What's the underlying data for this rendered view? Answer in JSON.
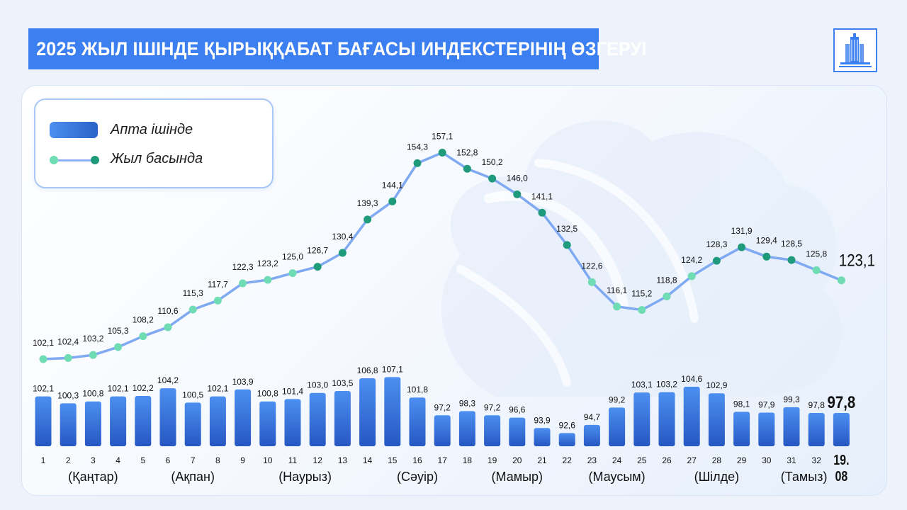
{
  "title": "2025 ЖЫЛ ІШІНДЕ ҚЫРЫҚҚАБАТ БАҒАСЫ ИНДЕКСТЕРІНІҢ ӨЗГЕРУІ",
  "logo_icon": "government-building-icon",
  "legend": {
    "weekly": "Апта ішінде",
    "ytd": "Жыл басында"
  },
  "colors": {
    "accent": "#3c7ff0",
    "bar_top": "#4c8ff0",
    "bar_bottom": "#2657c2",
    "line": "#7fa9f0",
    "dot_light": "#6fdcb4",
    "dot_dark": "#1f9a7a"
  },
  "chart_data": {
    "type": "bar+line",
    "categories": [
      "1",
      "2",
      "3",
      "4",
      "5",
      "6",
      "7",
      "8",
      "9",
      "10",
      "11",
      "12",
      "13",
      "14",
      "15",
      "16",
      "17",
      "18",
      "19",
      "20",
      "21",
      "22",
      "23",
      "24",
      "25",
      "26",
      "27",
      "28",
      "29",
      "30",
      "31",
      "32",
      "19.\n08"
    ],
    "last_category_lines": [
      "19.",
      "08"
    ],
    "months": [
      "(Қаңтар)",
      "(Ақпан)",
      "(Наурыз)",
      "(Сәуір)",
      "(Мамыр)",
      "(Маусым)",
      "(Шілде)",
      "(Тамыз)"
    ],
    "series": [
      {
        "name": "Апта ішінде",
        "type": "bar",
        "values": [
          102.1,
          100.3,
          100.8,
          102.1,
          102.2,
          104.2,
          100.5,
          102.1,
          103.9,
          100.8,
          101.4,
          103.0,
          103.5,
          106.8,
          107.1,
          101.8,
          97.2,
          98.3,
          97.2,
          96.6,
          93.9,
          92.6,
          94.7,
          99.2,
          103.1,
          103.2,
          104.6,
          102.9,
          98.1,
          97.9,
          99.3,
          97.8,
          97.8
        ],
        "labels": [
          "102,1",
          "100,3",
          "100,8",
          "102,1",
          "102,2",
          "104,2",
          "100,5",
          "102,1",
          "103,9",
          "100,8",
          "101,4",
          "103,0",
          "103,5",
          "106,8",
          "107,1",
          "101,8",
          "97,2",
          "98,3",
          "97,2",
          "96,6",
          "93,9",
          "92,6",
          "94,7",
          "99,2",
          "103,1",
          "103,2",
          "104,6",
          "102,9",
          "98,1",
          "97,9",
          "99,3",
          "97,8",
          "97,8"
        ]
      },
      {
        "name": "Жыл басында",
        "type": "line",
        "values": [
          102.1,
          102.4,
          103.2,
          105.3,
          108.2,
          110.6,
          115.3,
          117.7,
          122.3,
          123.2,
          125.0,
          126.7,
          130.4,
          139.3,
          144.1,
          154.3,
          157.1,
          152.8,
          150.2,
          146.0,
          141.1,
          132.5,
          122.6,
          116.1,
          115.2,
          118.8,
          124.2,
          128.3,
          131.9,
          129.4,
          128.5,
          125.8,
          123.1
        ],
        "labels": [
          "102,1",
          "102,4",
          "103,2",
          "105,3",
          "108,2",
          "110,6",
          "115,3",
          "117,7",
          "122,3",
          "123,2",
          "125,0",
          "126,7",
          "130,4",
          "139,3",
          "144,1",
          "154,3",
          "157,1",
          "152,8",
          "150,2",
          "146,0",
          "141,1",
          "132,5",
          "122,6",
          "116,1",
          "115,2",
          "118,8",
          "124,2",
          "128,3",
          "131,9",
          "129,4",
          "128,5",
          "125,8",
          "123,1"
        ]
      }
    ]
  }
}
